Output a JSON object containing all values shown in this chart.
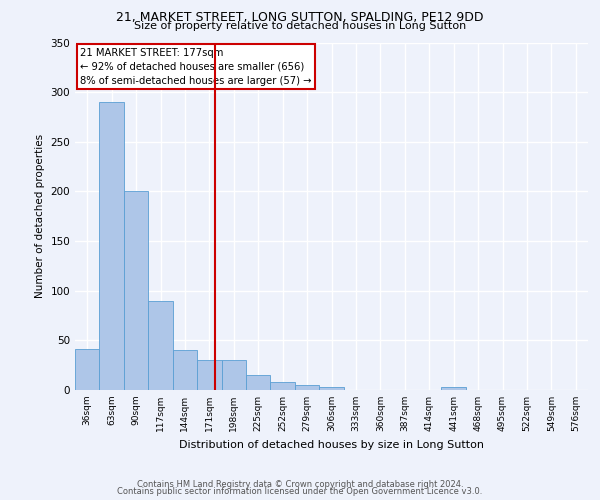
{
  "title_line1": "21, MARKET STREET, LONG SUTTON, SPALDING, PE12 9DD",
  "title_line2": "Size of property relative to detached houses in Long Sutton",
  "xlabel": "Distribution of detached houses by size in Long Sutton",
  "ylabel": "Number of detached properties",
  "footer_line1": "Contains HM Land Registry data © Crown copyright and database right 2024.",
  "footer_line2": "Contains public sector information licensed under the Open Government Licence v3.0.",
  "bar_labels": [
    "36sqm",
    "63sqm",
    "90sqm",
    "117sqm",
    "144sqm",
    "171sqm",
    "198sqm",
    "225sqm",
    "252sqm",
    "279sqm",
    "306sqm",
    "333sqm",
    "360sqm",
    "387sqm",
    "414sqm",
    "441sqm",
    "468sqm",
    "495sqm",
    "522sqm",
    "549sqm",
    "576sqm"
  ],
  "bar_values": [
    41,
    290,
    200,
    90,
    40,
    30,
    30,
    15,
    8,
    5,
    3,
    0,
    0,
    0,
    0,
    3,
    0,
    0,
    0,
    0,
    0
  ],
  "bar_color": "#aec6e8",
  "bar_edge_color": "#5a9fd4",
  "property_size": 177,
  "property_label": "21 MARKET STREET: 177sqm",
  "annotation_line1": "← 92% of detached houses are smaller (656)",
  "annotation_line2": "8% of semi-detached houses are larger (57) →",
  "vline_color": "#cc0000",
  "ylim": [
    0,
    350
  ],
  "yticks": [
    0,
    50,
    100,
    150,
    200,
    250,
    300,
    350
  ],
  "background_color": "#eef2fb",
  "plot_background": "#eef2fb",
  "grid_color": "#ffffff",
  "annotation_box_color": "#cc0000"
}
